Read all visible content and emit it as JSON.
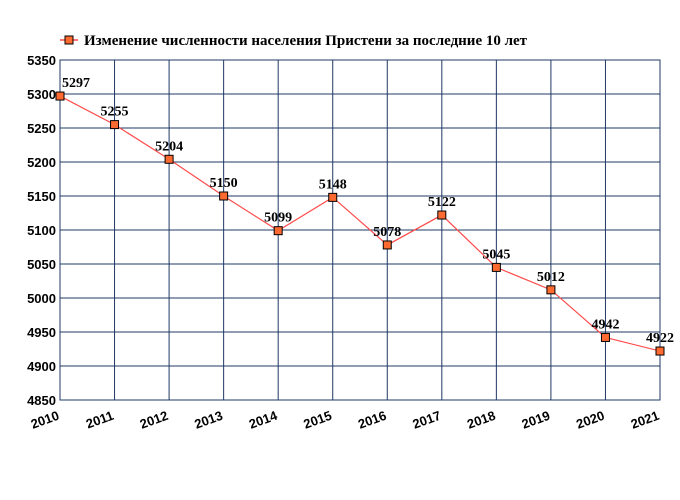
{
  "chart_data": {
    "type": "line",
    "title": "",
    "xlabel": "",
    "ylabel": "",
    "x": [
      "2010",
      "2011",
      "2012",
      "2013",
      "2014",
      "2015",
      "2016",
      "2017",
      "2018",
      "2019",
      "2020",
      "2021"
    ],
    "series": [
      {
        "name": "Изменение численности населения Пристени за последние 10 лет",
        "values": [
          5297,
          5255,
          5204,
          5150,
          5099,
          5148,
          5078,
          5122,
          5045,
          5012,
          4942,
          4922
        ],
        "color": "#ff4b4b",
        "marker_color": "#ff6a30"
      }
    ],
    "data_labels": [
      "5297",
      "5255",
      "5204",
      "5150",
      "5099",
      "5148",
      "5078",
      "5122",
      "5045",
      "5012",
      "4942",
      "4922"
    ],
    "yticks": [
      "4850",
      "4900",
      "4950",
      "5000",
      "5050",
      "5100",
      "5150",
      "5200",
      "5250",
      "5300",
      "5350"
    ],
    "ylim": [
      4850,
      5350
    ],
    "grid": true,
    "grid_color": "#1f3864",
    "legend_position": "top-left"
  }
}
